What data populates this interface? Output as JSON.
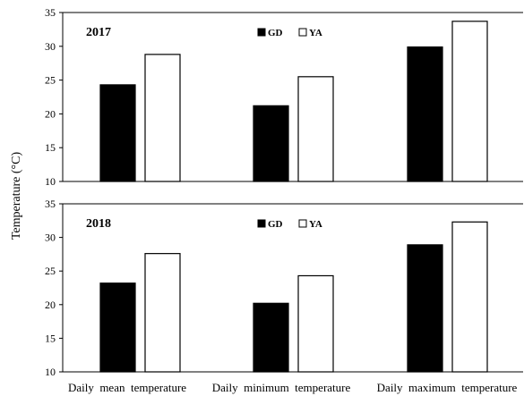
{
  "ylabel": "Temperature (°C)",
  "categories": [
    "Daily  mean  temperature",
    "Daily  minimum  temperature",
    "Daily  maximum  temperature"
  ],
  "legend": [
    "GD",
    "YA"
  ],
  "colors": {
    "GD": "#000000",
    "YA": "#ffffff",
    "axis": "#000000"
  },
  "chart_data": [
    {
      "type": "bar",
      "title": "2017",
      "categories": [
        "Daily  mean  temperature",
        "Daily  minimum  temperature",
        "Daily  maximum  temperature"
      ],
      "series": [
        {
          "name": "GD",
          "values": [
            24.3,
            21.2,
            29.9
          ]
        },
        {
          "name": "YA",
          "values": [
            28.8,
            25.5,
            33.7
          ]
        }
      ],
      "ylim": [
        10,
        35
      ],
      "yticks": [
        10,
        15,
        20,
        25,
        30,
        35
      ],
      "ylabel": "Temperature (°C)",
      "legend_position": "top-center",
      "grid": false
    },
    {
      "type": "bar",
      "title": "2018",
      "categories": [
        "Daily  mean  temperature",
        "Daily  minimum  temperature",
        "Daily  maximum  temperature"
      ],
      "series": [
        {
          "name": "GD",
          "values": [
            23.2,
            20.2,
            28.9
          ]
        },
        {
          "name": "YA",
          "values": [
            27.6,
            24.3,
            32.3
          ]
        }
      ],
      "ylim": [
        10,
        35
      ],
      "yticks": [
        10,
        15,
        20,
        25,
        30,
        35
      ],
      "ylabel": "Temperature (°C)",
      "legend_position": "top-center",
      "grid": false
    }
  ]
}
